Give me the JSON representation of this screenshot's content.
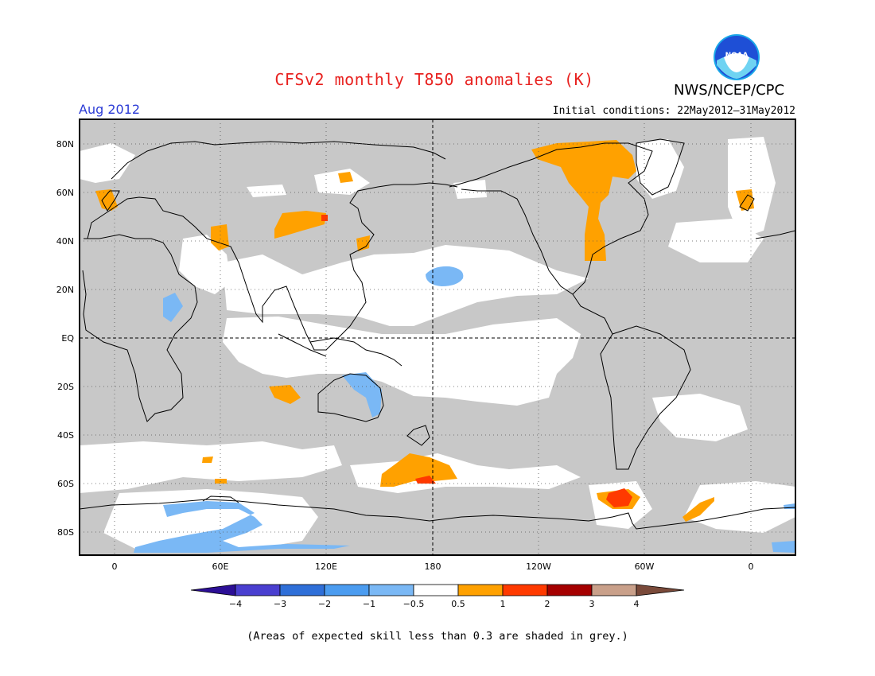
{
  "title": "CFSv2 monthly T850 anomalies (K)",
  "valid_period": "Aug 2012",
  "initial_conditions": "Initial conditions: 22May2012–31May2012",
  "agency": "NWS/NCEP/CPC",
  "logo_text": "NOAA",
  "lat_labels": [
    "80N",
    "60N",
    "40N",
    "20N",
    "EQ",
    "20S",
    "40S",
    "60S",
    "80S"
  ],
  "lon_labels": [
    "0",
    "60E",
    "120E",
    "180",
    "120W",
    "60W",
    "0"
  ],
  "colorbar": {
    "labels": [
      "−4",
      "−3",
      "−2",
      "−1",
      "−0.5",
      "0.5",
      "1",
      "2",
      "3",
      "4"
    ],
    "colors": [
      "#2c0f96",
      "#4a3fd0",
      "#2f6fd8",
      "#4b9cf0",
      "#7ab8f5",
      "#ffffff",
      "#ffa100",
      "#ff3a00",
      "#a50000",
      "#c9a08a",
      "#7a4a3a"
    ]
  },
  "colors": {
    "skill_mask_grey": "#c8c8c8",
    "title_red": "#e8211f",
    "period_blue": "#2b3bd6"
  },
  "footnote": "(Areas of expected skill less than 0.3 are shaded in grey.)"
}
